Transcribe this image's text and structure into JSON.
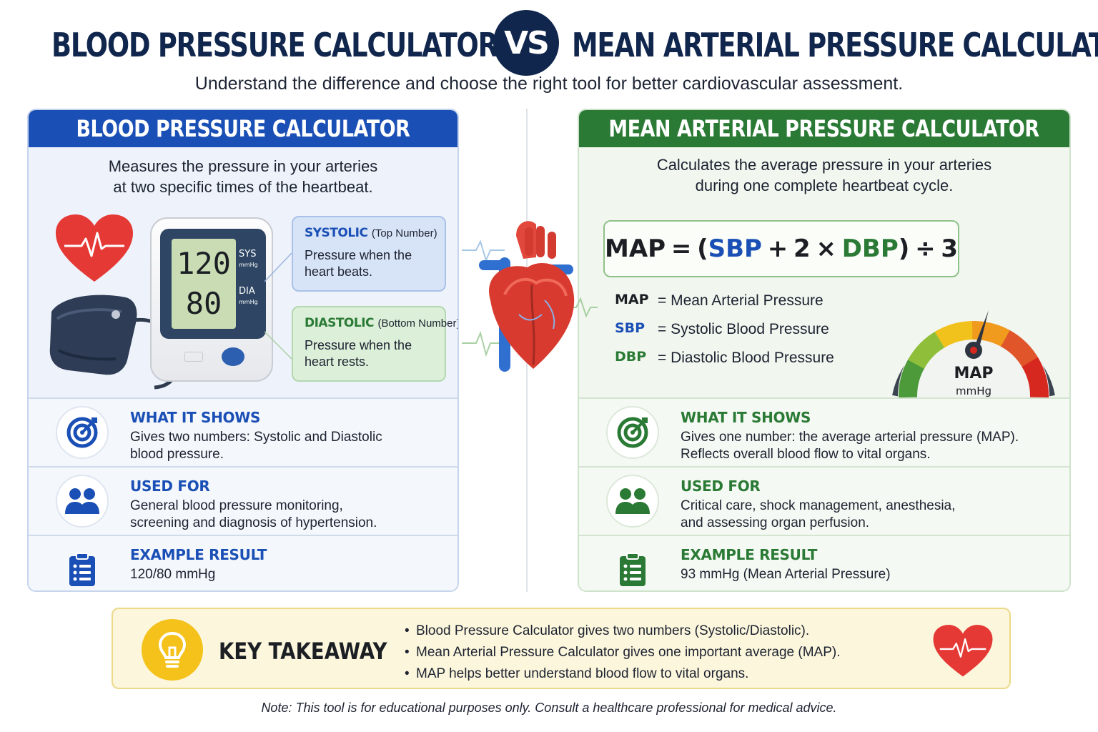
{
  "header": {
    "title_left": "BLOOD PRESSURE CALCULATOR",
    "vs": "VS",
    "title_right": "MEAN ARTERIAL PRESSURE CALCULATOR",
    "subtitle": "Understand the difference and choose the right tool for better cardiovascular assessment."
  },
  "bp": {
    "heading": "BLOOD PRESSURE CALCULATOR",
    "desc": [
      "Measures the pressure in your arteries",
      "at two specific times of the heartbeat."
    ],
    "monitor": {
      "sys_value": "120",
      "sys_label": "SYS",
      "sys_unit": "mmHg",
      "dia_value": "80",
      "dia_label": "DIA",
      "dia_unit": "mmHg"
    },
    "systolic": {
      "title": "SYSTOLIC",
      "sub": "(Top Number)",
      "desc": [
        "Pressure when the",
        "heart beats."
      ]
    },
    "diastolic": {
      "title": "DIASTOLIC",
      "sub": "(Bottom Number)",
      "desc": [
        "Pressure when the",
        "heart rests."
      ]
    },
    "rows": [
      {
        "title": "WHAT IT SHOWS",
        "icon": "target-icon",
        "lines": [
          "Gives two numbers: Systolic and Diastolic",
          "blood pressure."
        ]
      },
      {
        "title": "USED FOR",
        "icon": "users-icon",
        "lines": [
          "General blood pressure monitoring,",
          "screening and diagnosis of hypertension."
        ]
      },
      {
        "title": "EXAMPLE RESULT",
        "icon": "clipboard-icon",
        "lines": [
          "120/80 mmHg"
        ]
      }
    ]
  },
  "map": {
    "heading": "MEAN ARTERIAL PRESSURE CALCULATOR",
    "desc": [
      "Calculates the average pressure in your arteries",
      "during one complete heartbeat cycle."
    ],
    "formula": {
      "lhs": "MAP",
      "eq": "=",
      "open": "(",
      "sbp": "SBP",
      "plus": "+",
      "two": "2",
      "times": "×",
      "dbp": "DBP",
      "close": ")",
      "div": "÷",
      "three": "3"
    },
    "legend": [
      {
        "key": "MAP",
        "value": "= Mean Arterial Pressure"
      },
      {
        "key": "SBP",
        "value": "= Systolic Blood Pressure"
      },
      {
        "key": "DBP",
        "value": "= Diastolic Blood Pressure"
      }
    ],
    "gauge": {
      "label": "MAP",
      "unit": "mmHg",
      "colors": [
        "#4c9a3a",
        "#8fbf3a",
        "#f2c21c",
        "#f09a1e",
        "#e0552a",
        "#d6281e"
      ]
    },
    "rows": [
      {
        "title": "WHAT IT SHOWS",
        "icon": "target-icon",
        "lines": [
          "Gives one number: the average arterial pressure (MAP).",
          "Reflects overall blood flow to vital organs."
        ]
      },
      {
        "title": "USED FOR",
        "icon": "users-icon",
        "lines": [
          "Critical care, shock management, anesthesia,",
          "and assessing organ perfusion."
        ]
      },
      {
        "title": "EXAMPLE RESULT",
        "icon": "clipboard-icon",
        "lines": [
          "93 mmHg (Mean Arterial Pressure)"
        ]
      }
    ]
  },
  "takeaway": {
    "title": "KEY TAKEAWAY",
    "items": [
      "Blood Pressure Calculator gives two numbers (Systolic/Diastolic).",
      "Mean Arterial Pressure Calculator gives one important average (MAP).",
      "MAP helps better understand blood flow to vital organs."
    ]
  },
  "note": "Note: This tool is for educational purposes only. Consult a healthcare professional for medical advice.",
  "colors": {
    "navy": "#10264d",
    "blue": "#1a4fb5",
    "green": "#2a7a35",
    "red": "#e53935",
    "yellow": "#f4c21a"
  }
}
